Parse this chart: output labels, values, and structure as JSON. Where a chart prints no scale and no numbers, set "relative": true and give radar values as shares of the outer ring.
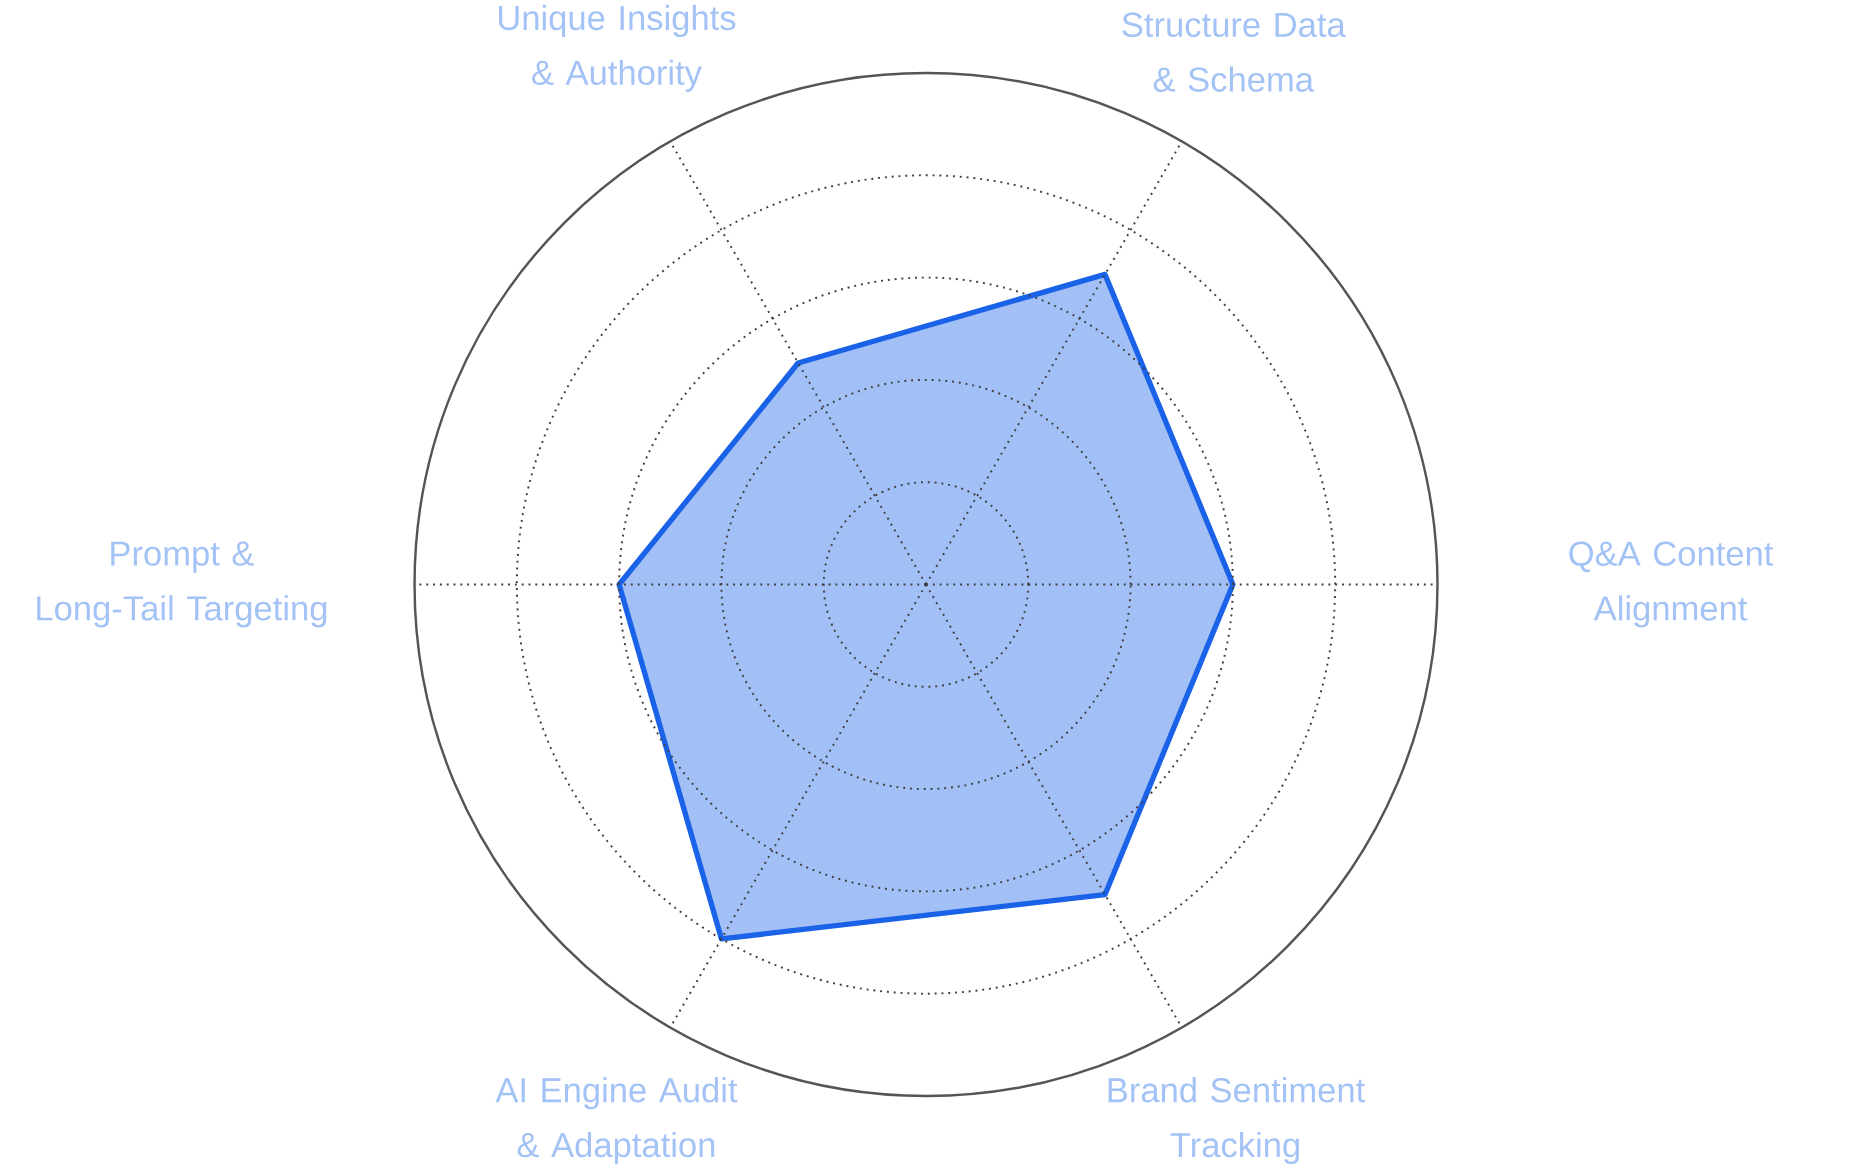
{
  "chart_data": {
    "type": "radar",
    "relative": true,
    "grid": true,
    "categories": [
      "Structure Data & Schema",
      "Q&A Content Alignment",
      "Brand Sentiment Tracking",
      "AI Engine Audit & Adaptation",
      "Prompt & Long-Tail Targeting",
      "Unique Insights & Authority"
    ],
    "series": [
      {
        "color": "#1a62e8",
        "values": [
          0.7,
          0.6,
          0.7,
          0.8,
          0.6,
          0.5
        ]
      }
    ]
  }
}
